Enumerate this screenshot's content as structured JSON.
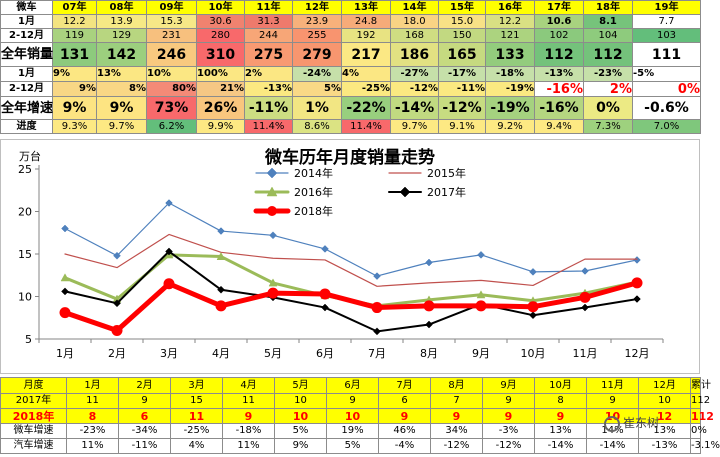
{
  "top_table": {
    "corner": "微车",
    "years": [
      "07年",
      "08年",
      "09年",
      "10年",
      "11年",
      "12年",
      "13年",
      "14年",
      "15年",
      "16年",
      "17年",
      "18年",
      "19年"
    ],
    "rows": [
      {
        "label": "1月",
        "cls": "r-m",
        "cells": [
          {
            "v": "12.2",
            "bg": "#f3e481"
          },
          {
            "v": "13.9",
            "bg": "#f6e985"
          },
          {
            "v": "15.3",
            "bg": "#f7e887"
          },
          {
            "v": "30.6",
            "bg": "#f0826f"
          },
          {
            "v": "31.3",
            "bg": "#ee7a6c"
          },
          {
            "v": "23.9",
            "bg": "#f7b17b"
          },
          {
            "v": "24.8",
            "bg": "#f6ab79"
          },
          {
            "v": "18.0",
            "bg": "#f9d384"
          },
          {
            "v": "15.0",
            "bg": "#f8e186"
          },
          {
            "v": "12.2",
            "bg": "#d9e083"
          },
          {
            "v": "10.6",
            "bg": "#a8d27f",
            "b": true
          },
          {
            "v": "8.1",
            "bg": "#76c37b",
            "b": true
          },
          {
            "v": "7.7",
            "bg": "#ffffff"
          }
        ]
      },
      {
        "label": "2-12月",
        "cls": "r-m",
        "cells": [
          {
            "v": "119",
            "bg": "#a9d27f"
          },
          {
            "v": "129",
            "bg": "#b8d680"
          },
          {
            "v": "231",
            "bg": "#f7c07e"
          },
          {
            "v": "280",
            "bg": "#f8696b"
          },
          {
            "v": "244",
            "bg": "#f7a677"
          },
          {
            "v": "255",
            "bg": "#f8946f"
          },
          {
            "v": "192",
            "bg": "#e8e382"
          },
          {
            "v": "168",
            "bg": "#cfdd82"
          },
          {
            "v": "150",
            "bg": "#c2d981"
          },
          {
            "v": "121",
            "bg": "#acd37f"
          },
          {
            "v": "102",
            "bg": "#8bc97d"
          },
          {
            "v": "104",
            "bg": "#8ecb7d"
          },
          {
            "v": "103",
            "bg": "#63be7b"
          }
        ]
      },
      {
        "label": "全年销量",
        "cls": "r-t",
        "cells": [
          {
            "v": "131",
            "bg": "#8dca7d"
          },
          {
            "v": "142",
            "bg": "#9ccf7e"
          },
          {
            "v": "246",
            "bg": "#f8c97f"
          },
          {
            "v": "310",
            "bg": "#f8696b"
          },
          {
            "v": "275",
            "bg": "#f89a72"
          },
          {
            "v": "279",
            "bg": "#f7966f"
          },
          {
            "v": "217",
            "bg": "#fbe884"
          },
          {
            "v": "186",
            "bg": "#e2e182"
          },
          {
            "v": "165",
            "bg": "#c6da80"
          },
          {
            "v": "133",
            "bg": "#93cc7d"
          },
          {
            "v": "112",
            "bg": "#74c27b"
          },
          {
            "v": "112",
            "bg": "#74c27b"
          },
          {
            "v": "111",
            "bg": "#ffffff"
          }
        ]
      },
      {
        "label": "1月",
        "cls": "r-g",
        "cells": [
          {
            "v": "9%",
            "bg": "#fce783",
            "a": "left"
          },
          {
            "v": "13%",
            "bg": "#fbe783",
            "a": "left"
          },
          {
            "v": "10%",
            "bg": "#fbe783",
            "a": "left"
          },
          {
            "v": "100%",
            "bg": "#fbe783",
            "a": "left"
          },
          {
            "v": "2%",
            "bg": "#fbe783",
            "a": "left"
          },
          {
            "v": "-24%",
            "bg": "#c6e0a9",
            "a": "center"
          },
          {
            "v": "4%",
            "bg": "#fbe783",
            "a": "left"
          },
          {
            "v": "-27%",
            "bg": "#c6e0a9",
            "a": "center"
          },
          {
            "v": "-17%",
            "bg": "#c6e0a9",
            "a": "center"
          },
          {
            "v": "-18%",
            "bg": "#c6e0a9",
            "a": "center"
          },
          {
            "v": "-13%",
            "bg": "#c6e0a9",
            "a": "center"
          },
          {
            "v": "-23%",
            "bg": "#c6e0a9",
            "a": "center"
          },
          {
            "v": "-5%",
            "bg": "#ffffff",
            "a": "left"
          }
        ]
      },
      {
        "label": "2-12月",
        "cls": "r-g",
        "cells": [
          {
            "v": "9%",
            "bg": "#f8d785",
            "a": "right"
          },
          {
            "v": "8%",
            "bg": "#f9d785",
            "a": "right"
          },
          {
            "v": "80%",
            "bg": "#f48a77",
            "a": "right"
          },
          {
            "v": "21%",
            "bg": "#f6c784",
            "a": "right"
          },
          {
            "v": "-13%",
            "bg": "#fbe981",
            "a": "right"
          },
          {
            "v": "5%",
            "bg": "#f9d986",
            "a": "right"
          },
          {
            "v": "-25%",
            "bg": "#fbe981",
            "a": "right"
          },
          {
            "v": "-12%",
            "bg": "#fbe981",
            "a": "right"
          },
          {
            "v": "-11%",
            "bg": "#fbe981",
            "a": "right"
          },
          {
            "v": "-19%",
            "bg": "#fbe981",
            "a": "right"
          },
          {
            "v": "-16%",
            "bg": "#ffffff",
            "a": "right",
            "c": "#ff0000",
            "big": true
          },
          {
            "v": "2%",
            "bg": "#ffffff",
            "a": "right",
            "c": "#ff0000",
            "big": true
          },
          {
            "v": "0%",
            "bg": "#ffffff",
            "a": "right",
            "c": "#ff0000",
            "big": true
          }
        ]
      },
      {
        "label": "全年增速",
        "cls": "r-gt",
        "cells": [
          {
            "v": "9%",
            "bg": "#fde482"
          },
          {
            "v": "9%",
            "bg": "#fde482"
          },
          {
            "v": "73%",
            "bg": "#f8696b"
          },
          {
            "v": "26%",
            "bg": "#f9c67e"
          },
          {
            "v": "-11%",
            "bg": "#cddd82"
          },
          {
            "v": "1%",
            "bg": "#f2e683"
          },
          {
            "v": "-22%",
            "bg": "#98cf7e"
          },
          {
            "v": "-14%",
            "bg": "#c1da81"
          },
          {
            "v": "-12%",
            "bg": "#c7dc81"
          },
          {
            "v": "-19%",
            "bg": "#a5d27f"
          },
          {
            "v": "-16%",
            "bg": "#b5d680"
          },
          {
            "v": "0%",
            "bg": "#ecea84"
          },
          {
            "v": "-0.6%",
            "bg": "#ffffff"
          }
        ]
      },
      {
        "label": "进度",
        "cls": "r-p",
        "cells": [
          {
            "v": "9.3%",
            "bg": "#fde983"
          },
          {
            "v": "9.7%",
            "bg": "#fde983"
          },
          {
            "v": "6.2%",
            "bg": "#63be7b"
          },
          {
            "v": "9.9%",
            "bg": "#fde983"
          },
          {
            "v": "11.4%",
            "bg": "#f8696b"
          },
          {
            "v": "8.6%",
            "bg": "#dbe383"
          },
          {
            "v": "11.4%",
            "bg": "#f8696b"
          },
          {
            "v": "9.7%",
            "bg": "#fde983"
          },
          {
            "v": "9.1%",
            "bg": "#fde983"
          },
          {
            "v": "9.2%",
            "bg": "#fde983"
          },
          {
            "v": "9.4%",
            "bg": "#fde983"
          },
          {
            "v": "7.3%",
            "bg": "#9ed17e"
          },
          {
            "v": "7.0%",
            "bg": "#7fc77c"
          }
        ]
      }
    ]
  },
  "chart_data": {
    "type": "line",
    "title": "微车历年月度销量走势",
    "ylabel": "万台",
    "ylim": [
      5,
      25
    ],
    "yticks": [
      5,
      10,
      15,
      20,
      25
    ],
    "grid": false,
    "legend_position": "top-right",
    "categories": [
      "1月",
      "2月",
      "3月",
      "4月",
      "5月",
      "6月",
      "7月",
      "8月",
      "9月",
      "10月",
      "11月",
      "12月"
    ],
    "series": [
      {
        "name": "2014年",
        "color": "#4f81bd",
        "width": 1.2,
        "marker": "diamond",
        "values": [
          18.0,
          14.8,
          21.0,
          17.7,
          17.2,
          15.6,
          12.4,
          14.0,
          14.9,
          12.9,
          13.0,
          14.3
        ]
      },
      {
        "name": "2015年",
        "color": "#c0504d",
        "width": 1.2,
        "marker": "none",
        "values": [
          15.0,
          13.4,
          17.3,
          15.2,
          14.5,
          14.3,
          11.2,
          11.6,
          11.9,
          11.3,
          14.4,
          14.4
        ]
      },
      {
        "name": "2016年",
        "color": "#9bbb59",
        "width": 3,
        "marker": "triangle",
        "values": [
          12.2,
          9.7,
          14.9,
          14.7,
          11.6,
          10.1,
          8.9,
          9.6,
          10.2,
          9.5,
          10.4,
          11.7
        ]
      },
      {
        "name": "2017年",
        "color": "#000000",
        "width": 2,
        "marker": "diamond",
        "values": [
          10.6,
          9.2,
          15.3,
          10.8,
          9.9,
          8.7,
          5.9,
          6.7,
          9.1,
          7.8,
          8.7,
          9.7
        ]
      },
      {
        "name": "2018年",
        "color": "#ff0000",
        "width": 5,
        "marker": "circle",
        "values": [
          8.1,
          6.0,
          11.5,
          8.9,
          10.4,
          10.3,
          8.7,
          8.9,
          8.9,
          8.8,
          9.9,
          11.6
        ]
      }
    ]
  },
  "bottom_table": {
    "headers": [
      "月度",
      "1月",
      "2月",
      "3月",
      "4月",
      "5月",
      "6月",
      "7月",
      "8月",
      "9月",
      "10月",
      "11月",
      "12月",
      "累计"
    ],
    "rows": [
      {
        "cls": "b-2017",
        "cells": [
          "2017年",
          "11",
          "9",
          "15",
          "11",
          "10",
          "9",
          "6",
          "7",
          "9",
          "8",
          "9",
          "10",
          "112"
        ]
      },
      {
        "cls": "b-2018",
        "cells": [
          "2018年",
          "8",
          "6",
          "11",
          "9",
          "10",
          "10",
          "9",
          "9",
          "9",
          "9",
          "10",
          "12",
          "112"
        ]
      },
      {
        "cls": "b-mg",
        "cells": [
          "微车增速",
          "-23%",
          "-34%",
          "-25%",
          "-18%",
          "5%",
          "19%",
          "46%",
          "34%",
          "-3%",
          "13%",
          "14%",
          "13%",
          "0%"
        ]
      },
      {
        "cls": "b-ag",
        "cells": [
          "汽车增速",
          "11%",
          "-11%",
          "4%",
          "11%",
          "9%",
          "5%",
          "-4%",
          "-12%",
          "-12%",
          "-14%",
          "-14%",
          "-13%",
          "-3.1%"
        ]
      }
    ]
  },
  "watermark": {
    "text": "崔东树",
    "icon": "wechat-icon"
  }
}
